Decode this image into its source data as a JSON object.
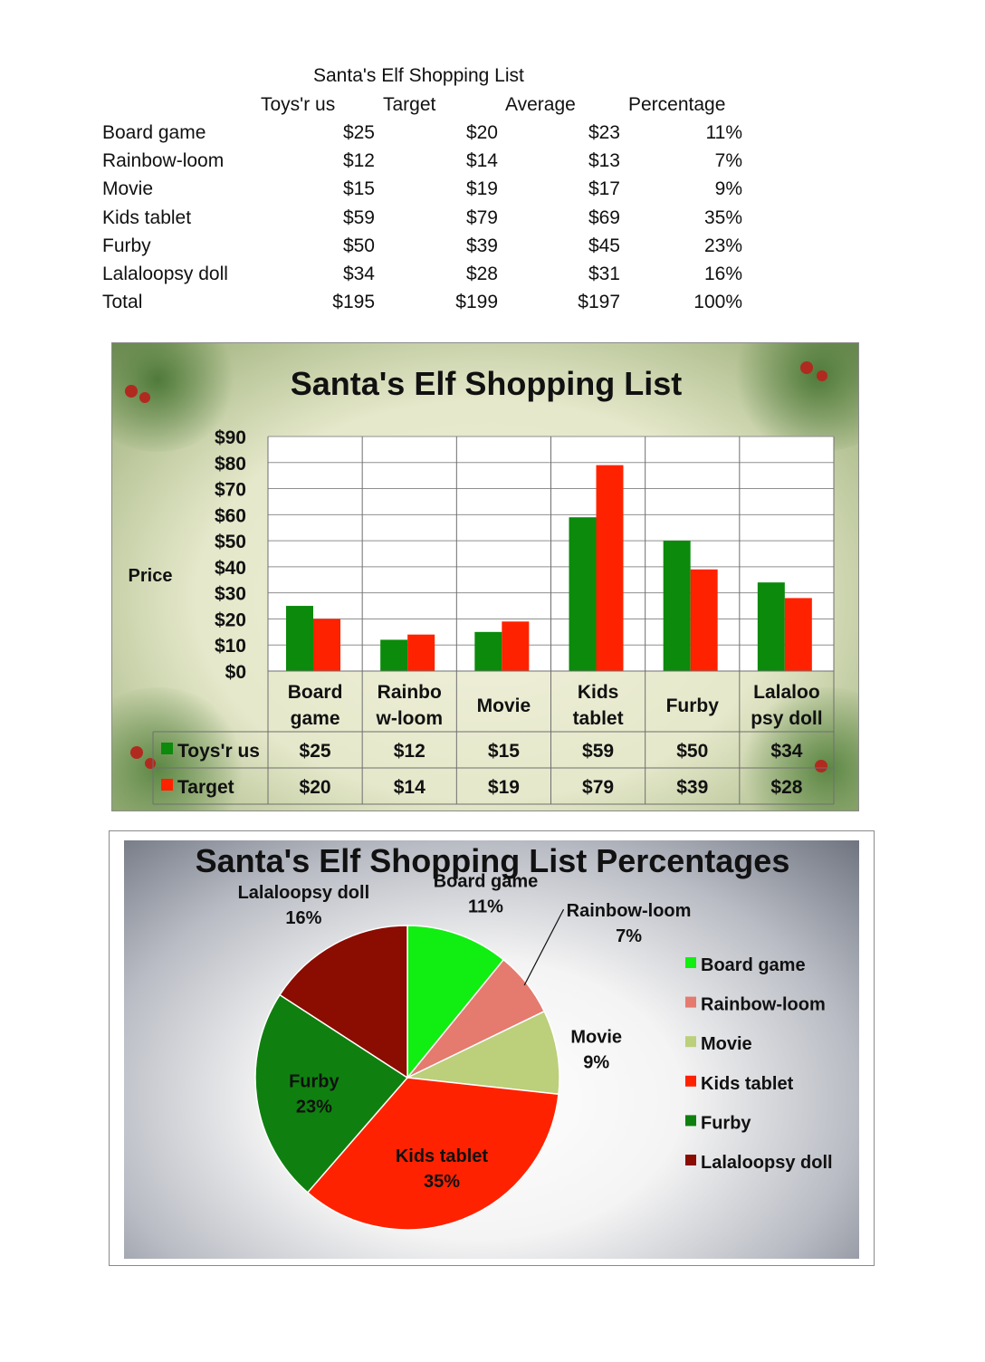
{
  "table": {
    "title": "Santa's Elf Shopping List",
    "headers": [
      "Toys'r us",
      "Target",
      "Average",
      "Percentage"
    ],
    "rows": [
      {
        "item": "Board game",
        "toys": "$25",
        "target": "$20",
        "avg": "$23",
        "pct": "11%"
      },
      {
        "item": "Rainbow-loom",
        "toys": "$12",
        "target": "$14",
        "avg": "$13",
        "pct": "7%"
      },
      {
        "item": "Movie",
        "toys": "$15",
        "target": "$19",
        "avg": "$17",
        "pct": "9%"
      },
      {
        "item": "Kids tablet",
        "toys": "$59",
        "target": "$79",
        "avg": "$69",
        "pct": "35%"
      },
      {
        "item": "Furby",
        "toys": "$50",
        "target": "$39",
        "avg": "$45",
        "pct": "23%"
      },
      {
        "item": "Lalaloopsy doll",
        "toys": "$34",
        "target": "$28",
        "avg": "$31",
        "pct": "16%"
      },
      {
        "item": "Total",
        "toys": "$195",
        "target": "$199",
        "avg": "$197",
        "pct": "100%"
      }
    ]
  },
  "chart_data": [
    {
      "type": "bar",
      "title": "Santa's Elf Shopping List",
      "ylabel": "Price",
      "xlabel": "",
      "categories": [
        "Board game",
        "Rainbow-loom",
        "Movie",
        "Kids tablet",
        "Furby",
        "Lalaloopsy doll"
      ],
      "category_labels": [
        [
          "Board",
          "game"
        ],
        [
          "Rainbo",
          "w-loom"
        ],
        [
          "Movie"
        ],
        [
          "Kids",
          "tablet"
        ],
        [
          "Furby"
        ],
        [
          "Lalaloo",
          "psy doll"
        ]
      ],
      "series": [
        {
          "name": "Toys'r us",
          "values": [
            25,
            12,
            15,
            59,
            50,
            34
          ],
          "labels": [
            "$25",
            "$12",
            "$15",
            "$59",
            "$50",
            "$34"
          ],
          "color": "#0b8a0b"
        },
        {
          "name": "Target",
          "values": [
            20,
            14,
            19,
            79,
            39,
            28
          ],
          "labels": [
            "$20",
            "$14",
            "$19",
            "$79",
            "$39",
            "$28"
          ],
          "color": "#ff2200"
        }
      ],
      "ylim": [
        0,
        90
      ],
      "yticks": [
        "$0",
        "$10",
        "$20",
        "$30",
        "$40",
        "$50",
        "$60",
        "$70",
        "$80",
        "$90"
      ],
      "grid": true,
      "data_table": true
    },
    {
      "type": "pie",
      "title": "Santa's Elf Shopping List Percentages",
      "slices": [
        {
          "name": "Board game",
          "value": 11,
          "label": "11%",
          "color": "#11ee11"
        },
        {
          "name": "Rainbow-loom",
          "value": 7,
          "label": "7%",
          "color": "#e57a6e"
        },
        {
          "name": "Movie",
          "value": 9,
          "label": "9%",
          "color": "#bccf7a"
        },
        {
          "name": "Kids tablet",
          "value": 35,
          "label": "35%",
          "color": "#ff2200"
        },
        {
          "name": "Furby",
          "value": 23,
          "label": "23%",
          "color": "#0f800f"
        },
        {
          "name": "Lalaloopsy doll",
          "value": 16,
          "label": "16%",
          "color": "#8b0c00"
        }
      ],
      "legend": "right"
    }
  ]
}
